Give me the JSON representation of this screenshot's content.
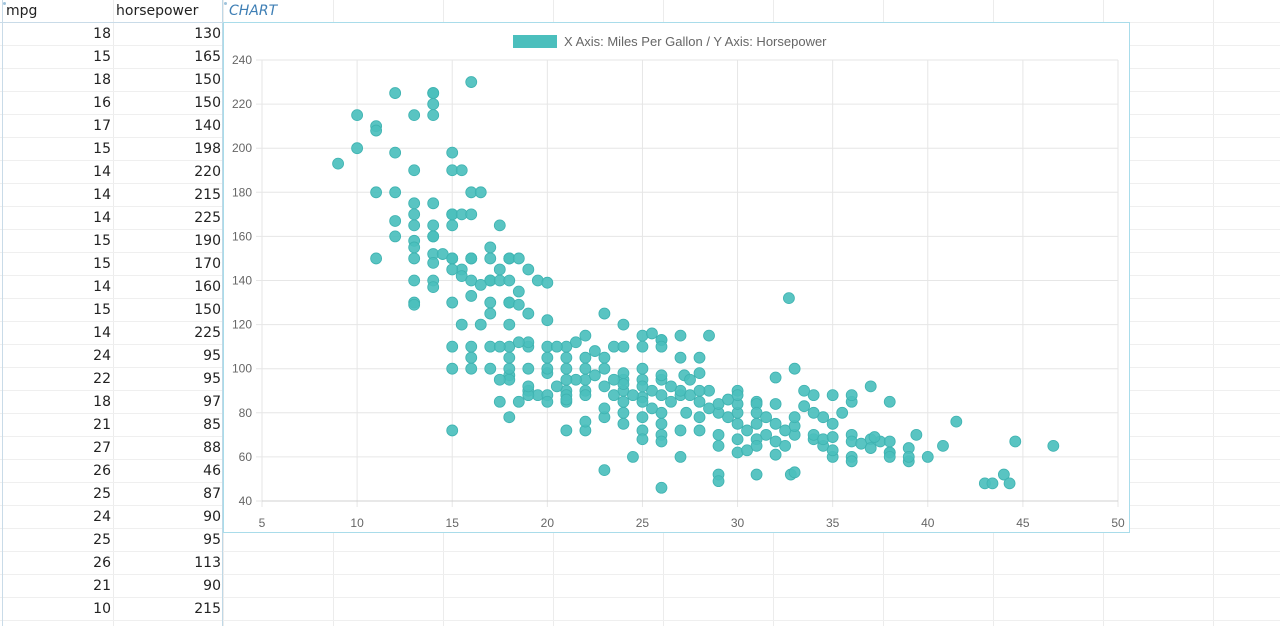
{
  "sheet": {
    "columns": [
      {
        "header": "mpg",
        "name": "col-mpg"
      },
      {
        "header": "horsepower",
        "name": "col-horsepower"
      },
      {
        "header": "CHART",
        "name": "col-chart"
      }
    ],
    "rows": [
      [
        "18",
        "130"
      ],
      [
        "15",
        "165"
      ],
      [
        "18",
        "150"
      ],
      [
        "16",
        "150"
      ],
      [
        "17",
        "140"
      ],
      [
        "15",
        "198"
      ],
      [
        "14",
        "220"
      ],
      [
        "14",
        "215"
      ],
      [
        "14",
        "225"
      ],
      [
        "15",
        "190"
      ],
      [
        "15",
        "170"
      ],
      [
        "14",
        "160"
      ],
      [
        "15",
        "150"
      ],
      [
        "14",
        "225"
      ],
      [
        "24",
        "95"
      ],
      [
        "22",
        "95"
      ],
      [
        "18",
        "97"
      ],
      [
        "21",
        "85"
      ],
      [
        "27",
        "88"
      ],
      [
        "26",
        "46"
      ],
      [
        "25",
        "87"
      ],
      [
        "24",
        "90"
      ],
      [
        "25",
        "95"
      ],
      [
        "26",
        "113"
      ],
      [
        "21",
        "90"
      ],
      [
        "10",
        "215"
      ]
    ]
  },
  "chart_data": {
    "type": "scatter",
    "title": "",
    "legend": {
      "label": "X Axis: Miles Per Gallon / Y Axis: Horsepower",
      "position": "top",
      "color": "#4bbfbd"
    },
    "xlabel": "Miles Per Gallon",
    "ylabel": "Horsepower",
    "xlim": [
      5,
      50
    ],
    "ylim": [
      40,
      240
    ],
    "x_ticks": [
      "5",
      "10",
      "15",
      "20",
      "25",
      "30",
      "35",
      "40",
      "45",
      "50"
    ],
    "y_ticks": [
      "40",
      "60",
      "80",
      "100",
      "120",
      "140",
      "160",
      "180",
      "200",
      "220",
      "240"
    ],
    "grid": true,
    "series": [
      {
        "name": "X Axis: Miles Per Gallon / Y Axis: Horsepower",
        "color": "#4bbfbd",
        "points": [
          [
            18,
            130
          ],
          [
            15,
            165
          ],
          [
            18,
            150
          ],
          [
            16,
            150
          ],
          [
            17,
            140
          ],
          [
            15,
            198
          ],
          [
            14,
            220
          ],
          [
            14,
            215
          ],
          [
            14,
            225
          ],
          [
            15,
            190
          ],
          [
            15,
            170
          ],
          [
            14,
            160
          ],
          [
            15,
            150
          ],
          [
            14,
            225
          ],
          [
            24,
            95
          ],
          [
            22,
            95
          ],
          [
            18,
            97
          ],
          [
            21,
            85
          ],
          [
            27,
            88
          ],
          [
            26,
            46
          ],
          [
            25,
            87
          ],
          [
            24,
            90
          ],
          [
            25,
            95
          ],
          [
            26,
            113
          ],
          [
            21,
            90
          ],
          [
            10,
            215
          ],
          [
            10,
            200
          ],
          [
            11,
            210
          ],
          [
            9,
            193
          ],
          [
            12,
            225
          ],
          [
            13,
            215
          ],
          [
            16,
            230
          ],
          [
            11,
            208
          ],
          [
            12,
            198
          ],
          [
            13,
            190
          ],
          [
            11,
            180
          ],
          [
            12,
            180
          ],
          [
            15.5,
            190
          ],
          [
            16,
            180
          ],
          [
            16.5,
            180
          ],
          [
            13,
            175
          ],
          [
            14,
            175
          ],
          [
            12,
            167
          ],
          [
            13,
            170
          ],
          [
            15,
            170
          ],
          [
            15.5,
            170
          ],
          [
            16,
            170
          ],
          [
            14,
            165
          ],
          [
            17.5,
            165
          ],
          [
            12,
            160
          ],
          [
            13,
            165
          ],
          [
            14,
            160
          ],
          [
            17,
            155
          ],
          [
            13,
            158
          ],
          [
            13,
            155
          ],
          [
            14,
            152
          ],
          [
            14.5,
            152
          ],
          [
            15,
            150
          ],
          [
            11,
            150
          ],
          [
            13,
            150
          ],
          [
            14,
            148
          ],
          [
            15.5,
            145
          ],
          [
            16,
            150
          ],
          [
            17,
            150
          ],
          [
            18,
            150
          ],
          [
            18.5,
            150
          ],
          [
            15,
            145
          ],
          [
            15.5,
            142
          ],
          [
            16,
            140
          ],
          [
            17,
            140
          ],
          [
            17.5,
            145
          ],
          [
            19,
            145
          ],
          [
            14,
            140
          ],
          [
            13,
            140
          ],
          [
            14,
            137
          ],
          [
            16.5,
            138
          ],
          [
            17.5,
            140
          ],
          [
            18,
            140
          ],
          [
            19.5,
            140
          ],
          [
            20,
            139
          ],
          [
            18.5,
            135
          ],
          [
            16,
            133
          ],
          [
            17,
            130
          ],
          [
            18,
            130
          ],
          [
            18.5,
            129
          ],
          [
            13,
            130
          ],
          [
            13,
            129
          ],
          [
            15,
            130
          ],
          [
            17,
            125
          ],
          [
            19,
            125
          ],
          [
            20,
            122
          ],
          [
            15.5,
            120
          ],
          [
            16.5,
            120
          ],
          [
            18,
            120
          ],
          [
            23,
            125
          ],
          [
            24,
            120
          ],
          [
            22,
            115
          ],
          [
            21.5,
            112
          ],
          [
            25,
            115
          ],
          [
            25.5,
            116
          ],
          [
            26,
            113
          ],
          [
            27,
            115
          ],
          [
            28.5,
            115
          ],
          [
            32.7,
            132
          ],
          [
            23.5,
            110
          ],
          [
            24,
            110
          ],
          [
            22.5,
            108
          ],
          [
            21,
            110
          ],
          [
            20,
            110
          ],
          [
            19,
            110
          ],
          [
            18,
            110
          ],
          [
            17,
            110
          ],
          [
            16,
            110
          ],
          [
            15,
            110
          ],
          [
            19,
            112
          ],
          [
            18.5,
            112
          ],
          [
            20.5,
            110
          ],
          [
            22,
            105
          ],
          [
            23,
            105
          ],
          [
            25,
            110
          ],
          [
            26,
            110
          ],
          [
            27,
            105
          ],
          [
            28,
            105
          ],
          [
            33,
            100
          ],
          [
            32,
            96
          ],
          [
            37,
            92
          ],
          [
            38,
            85
          ],
          [
            35,
            88
          ],
          [
            34,
            88
          ],
          [
            33.5,
            90
          ],
          [
            33.5,
            83
          ],
          [
            34.5,
            78
          ],
          [
            35.5,
            80
          ],
          [
            36,
            85
          ],
          [
            36,
            88
          ],
          [
            41.5,
            76
          ],
          [
            39.4,
            70
          ],
          [
            40.8,
            65
          ],
          [
            44.6,
            67
          ],
          [
            46.6,
            65
          ],
          [
            43,
            48
          ],
          [
            43.4,
            48
          ],
          [
            44,
            52
          ],
          [
            44.3,
            48
          ],
          [
            38,
            62
          ],
          [
            39,
            64
          ],
          [
            39,
            58
          ],
          [
            37.5,
            67
          ],
          [
            36,
            60
          ],
          [
            36,
            58
          ],
          [
            35,
            60
          ],
          [
            34.5,
            65
          ],
          [
            34,
            68
          ],
          [
            33,
            70
          ],
          [
            32.5,
            72
          ],
          [
            32,
            75
          ],
          [
            31.5,
            70
          ],
          [
            31,
            68
          ],
          [
            30.5,
            72
          ],
          [
            30,
            75
          ],
          [
            29.5,
            78
          ],
          [
            29,
            80
          ],
          [
            28.5,
            82
          ],
          [
            28,
            85
          ],
          [
            27.5,
            88
          ],
          [
            27,
            90
          ],
          [
            26.5,
            92
          ],
          [
            26,
            95
          ],
          [
            25.5,
            90
          ],
          [
            25,
            92
          ],
          [
            24.5,
            88
          ],
          [
            24,
            93
          ],
          [
            23.5,
            95
          ],
          [
            23,
            92
          ],
          [
            22.5,
            97
          ],
          [
            22,
            90
          ],
          [
            21.5,
            95
          ],
          [
            21,
            88
          ],
          [
            20.5,
            92
          ],
          [
            20,
            98
          ],
          [
            19.5,
            88
          ],
          [
            19,
            90
          ],
          [
            18.5,
            85
          ],
          [
            18,
            95
          ],
          [
            17.5,
            95
          ],
          [
            17,
            100
          ],
          [
            16,
            100
          ],
          [
            15,
            100
          ],
          [
            16,
            105
          ],
          [
            17.5,
            85
          ],
          [
            18,
            78
          ],
          [
            21,
            72
          ],
          [
            22,
            72
          ],
          [
            22,
            76
          ],
          [
            23,
            78
          ],
          [
            23,
            82
          ],
          [
            24,
            80
          ],
          [
            24,
            75
          ],
          [
            24.5,
            60
          ],
          [
            23,
            54
          ],
          [
            25,
            72
          ],
          [
            25,
            68
          ],
          [
            26,
            70
          ],
          [
            26,
            75
          ],
          [
            26,
            80
          ],
          [
            26,
            67
          ],
          [
            27,
            72
          ],
          [
            27,
            60
          ],
          [
            28,
            72
          ],
          [
            28,
            78
          ],
          [
            29,
            70
          ],
          [
            29,
            65
          ],
          [
            29,
            52
          ],
          [
            29,
            49
          ],
          [
            30,
            68
          ],
          [
            30,
            62
          ],
          [
            30,
            80
          ],
          [
            30.5,
            63
          ],
          [
            31,
            65
          ],
          [
            31,
            52
          ],
          [
            31,
            85
          ],
          [
            32,
            84
          ],
          [
            32,
            67
          ],
          [
            32,
            61
          ],
          [
            32.5,
            65
          ],
          [
            32.8,
            52
          ],
          [
            33,
            53
          ],
          [
            33,
            74
          ],
          [
            34,
            70
          ],
          [
            34.5,
            68
          ],
          [
            35,
            69
          ],
          [
            35,
            75
          ],
          [
            36,
            70
          ],
          [
            36,
            67
          ],
          [
            36.5,
            66
          ],
          [
            37,
            68
          ],
          [
            37.2,
            69
          ],
          [
            38,
            67
          ],
          [
            38,
            62
          ],
          [
            39,
            60
          ],
          [
            27.2,
            97
          ],
          [
            27.5,
            95
          ],
          [
            28.5,
            90
          ],
          [
            29,
            84
          ],
          [
            30,
            90
          ],
          [
            30,
            84
          ],
          [
            31,
            84
          ],
          [
            31,
            80
          ],
          [
            31.5,
            78
          ],
          [
            29.5,
            86
          ],
          [
            28,
            98
          ],
          [
            27.3,
            80
          ],
          [
            26.5,
            85
          ],
          [
            26,
            88
          ],
          [
            25.5,
            82
          ],
          [
            25,
            85
          ],
          [
            25,
            78
          ],
          [
            24,
            85
          ],
          [
            23.5,
            88
          ],
          [
            22,
            88
          ],
          [
            21,
            86
          ],
          [
            20,
            88
          ],
          [
            20,
            85
          ],
          [
            19,
            88
          ],
          [
            19,
            92
          ],
          [
            20,
            105
          ],
          [
            21,
            100
          ],
          [
            21,
            105
          ],
          [
            20,
            100
          ],
          [
            19,
            100
          ],
          [
            18,
            105
          ],
          [
            18,
            100
          ],
          [
            17.5,
            110
          ],
          [
            15,
            72
          ],
          [
            21,
            95
          ],
          [
            22,
            100
          ],
          [
            23,
            100
          ],
          [
            24,
            98
          ],
          [
            25,
            100
          ],
          [
            26,
            97
          ],
          [
            28,
            90
          ],
          [
            30,
            88
          ],
          [
            31,
            75
          ],
          [
            33,
            78
          ],
          [
            34,
            80
          ],
          [
            35,
            63
          ],
          [
            37,
            64
          ],
          [
            40,
            60
          ],
          [
            38,
            60
          ]
        ]
      }
    ]
  }
}
